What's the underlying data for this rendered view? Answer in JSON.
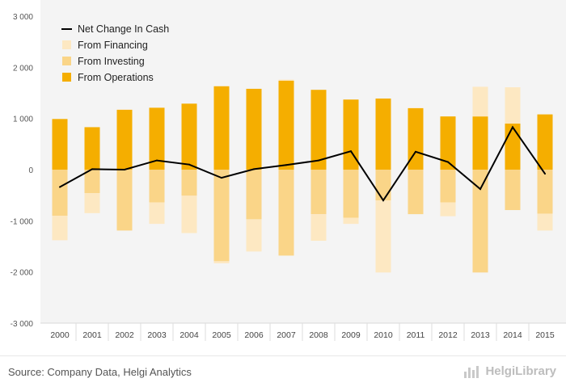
{
  "chart_data": {
    "type": "bar",
    "categories": [
      "2000",
      "2001",
      "2002",
      "2003",
      "2004",
      "2005",
      "2006",
      "2007",
      "2008",
      "2009",
      "2010",
      "2011",
      "2012",
      "2013",
      "2014",
      "2015"
    ],
    "series": [
      {
        "name": "From Operations",
        "kind": "bar",
        "values": [
          990,
          830,
          1170,
          1210,
          1290,
          1630,
          1580,
          1740,
          1560,
          1370,
          1390,
          1200,
          1040,
          1040,
          900,
          1080
        ]
      },
      {
        "name": "From Investing",
        "kind": "bar",
        "values": [
          -900,
          -460,
          -1190,
          -640,
          -510,
          -1790,
          -970,
          -1680,
          -870,
          -940,
          -600,
          -870,
          -640,
          -2010,
          -790,
          -860
        ]
      },
      {
        "name": "From Financing",
        "kind": "bar",
        "values": [
          -480,
          -390,
          10,
          -420,
          -730,
          -40,
          -630,
          20,
          -520,
          -120,
          -1410,
          10,
          -270,
          580,
          710,
          -330
        ]
      },
      {
        "name": "Net Change In Cash",
        "kind": "line",
        "values": [
          -340,
          10,
          0,
          180,
          100,
          -160,
          10,
          90,
          180,
          360,
          -600,
          350,
          150,
          -380,
          830,
          -80
        ]
      }
    ],
    "ylim": [
      -3000,
      3000
    ],
    "yticks": [
      -3000,
      -2000,
      -1000,
      0,
      1000,
      2000,
      3000
    ],
    "ytick_labels": [
      "-3 000",
      "-2 000",
      "-1 000",
      "0",
      "1 000",
      "2 000",
      "3 000"
    ],
    "legend_placement": "top-left",
    "grid": false,
    "xlabel": "",
    "ylabel": "",
    "colors": {
      "From Operations": "#F5AE00",
      "From Investing": "#FAD588",
      "From Financing": "#FDE8C2",
      "Net Change In Cash": "#000000"
    }
  },
  "legend": {
    "net_change_label": "Net Change In Cash",
    "financing_label": "From Financing",
    "investing_label": "From Investing",
    "operations_label": "From Operations"
  },
  "footer": {
    "source": "Source: Company Data, Helgi Analytics",
    "brand": "HelgiLibrary"
  }
}
